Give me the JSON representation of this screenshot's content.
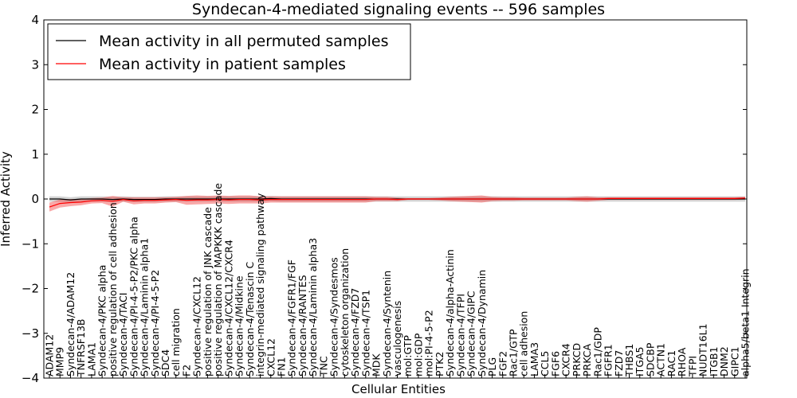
{
  "chart_data": {
    "type": "line",
    "title": "Syndecan-4-mediated signaling events -- 596 samples",
    "xlabel": "Cellular Entities",
    "ylabel": "Inferred Activity",
    "ylim": [
      -4,
      4
    ],
    "yticks": [
      -4,
      -3,
      -2,
      -1,
      0,
      1,
      2,
      3,
      4
    ],
    "legend_position": "top-left",
    "categories": [
      "ADAM12",
      "MMP9",
      "Syndecan-4/ADAM12",
      "TNFRSF13B",
      "LAMA1",
      "Syndecan-4/PKC alpha",
      "positive regulation of cell adhesion",
      "Syndecan-4/TACI",
      "Syndecan-4/PI-4-5-P2/PKC alpha",
      "Syndecan-4/Laminin alpha1",
      "Syndecan-4/PI-4-5-P2",
      "SDC4",
      "cell migration",
      "F2",
      "Syndecan-4/CXCL12",
      "positive regulation of JNK cascade",
      "positive regulation of MAPKKK cascade",
      "Syndecan-4/CXCL12/CXCR4",
      "Syndecan-4/Midkine",
      "Syndecan-4/Tenascin C",
      "integrin-mediated signaling pathway",
      "CXCL12",
      "FN1",
      "Syndecan-4/FGFR1/FGF",
      "Syndecan-4/RANTES",
      "Syndecan-4/Laminin alpha3",
      "TNC",
      "Syndecan-4/Syndesmos",
      "cytoskeleton organization",
      "Syndecan-4/FZD7",
      "Syndecan-4/TSP1",
      "MDK",
      "Syndecan-4/Syntenin",
      "vasculogenesis",
      "mol:GTP",
      "mol:GDP",
      "mol:PI-4-5-P2",
      "PTK2",
      "Syndecan-4/alpha-Actinin",
      "Syndecan-4/TFPI",
      "Syndecan-4/GIPC",
      "Syndecan-4/Dynamin",
      "PLG",
      "FGF2",
      "Rac1/GTP",
      "cell adhesion",
      "LAMA3",
      "CCL5",
      "FGF6",
      "CXCR4",
      "PRKCD",
      "PRKCA",
      "Rac1/GDP",
      "FGFR1",
      "FZD7",
      "THBS1",
      "ITGA5",
      "SDCBP",
      "ACTN1",
      "RAC1",
      "RHOA",
      "TFPI",
      "NUDT16L1",
      "ITGB1",
      "DNM2",
      "GIPC1",
      "alpha5/beta1 Integrin"
    ],
    "series": [
      {
        "name": "Mean activity in all permuted samples",
        "color": "#000000",
        "values": [
          0.0,
          0.0,
          -0.02,
          0.0,
          0.0,
          0.0,
          -0.01,
          0.0,
          -0.01,
          -0.01,
          -0.01,
          0.0,
          0.0,
          0.0,
          0.0,
          0.0,
          0.0,
          0.0,
          0.0,
          0.0,
          0.0,
          0.01,
          0.0,
          0.0,
          0.0,
          0.0,
          0.0,
          0.0,
          0.0,
          0.0,
          0.0,
          0.0,
          0.0,
          0.0,
          0.0,
          0.0,
          0.0,
          0.0,
          0.0,
          0.0,
          0.0,
          0.0,
          0.0,
          0.0,
          0.0,
          0.0,
          0.0,
          0.0,
          0.0,
          0.0,
          0.0,
          0.0,
          0.0,
          0.0,
          0.0,
          0.0,
          0.0,
          0.0,
          0.0,
          0.0,
          0.0,
          0.0,
          0.0,
          0.0,
          0.0,
          0.0,
          0.0
        ],
        "band": 0.06
      },
      {
        "name": "Mean activity in patient samples",
        "color": "#ff0000",
        "values": [
          -0.18,
          -0.1,
          -0.08,
          -0.07,
          -0.04,
          -0.03,
          -0.05,
          -0.01,
          -0.04,
          -0.03,
          -0.03,
          -0.02,
          -0.01,
          -0.03,
          -0.02,
          -0.02,
          -0.01,
          -0.02,
          -0.01,
          -0.01,
          -0.02,
          -0.01,
          -0.01,
          -0.01,
          -0.01,
          -0.01,
          -0.01,
          -0.01,
          -0.01,
          -0.01,
          -0.01,
          0.0,
          0.0,
          -0.01,
          0.0,
          0.0,
          0.0,
          0.0,
          0.0,
          0.0,
          0.0,
          0.0,
          0.0,
          0.0,
          0.0,
          0.0,
          0.0,
          0.0,
          0.0,
          0.0,
          0.0,
          0.0,
          0.0,
          0.01,
          0.01,
          0.01,
          0.01,
          0.01,
          0.01,
          0.01,
          0.01,
          0.01,
          0.01,
          0.01,
          0.01,
          0.01,
          0.02
        ],
        "band": [
          0.1,
          0.09,
          0.08,
          0.07,
          0.06,
          0.06,
          0.12,
          0.05,
          0.08,
          0.07,
          0.07,
          0.06,
          0.06,
          0.1,
          0.1,
          0.09,
          0.09,
          0.09,
          0.09,
          0.09,
          0.08,
          0.07,
          0.07,
          0.07,
          0.07,
          0.07,
          0.07,
          0.07,
          0.07,
          0.07,
          0.07,
          0.05,
          0.05,
          0.04,
          0.02,
          0.02,
          0.02,
          0.03,
          0.05,
          0.06,
          0.07,
          0.08,
          0.05,
          0.04,
          0.04,
          0.03,
          0.03,
          0.03,
          0.03,
          0.03,
          0.05,
          0.06,
          0.04,
          0.03,
          0.03,
          0.03,
          0.03,
          0.03,
          0.03,
          0.03,
          0.03,
          0.03,
          0.03,
          0.03,
          0.03,
          0.03,
          0.03
        ]
      }
    ]
  }
}
